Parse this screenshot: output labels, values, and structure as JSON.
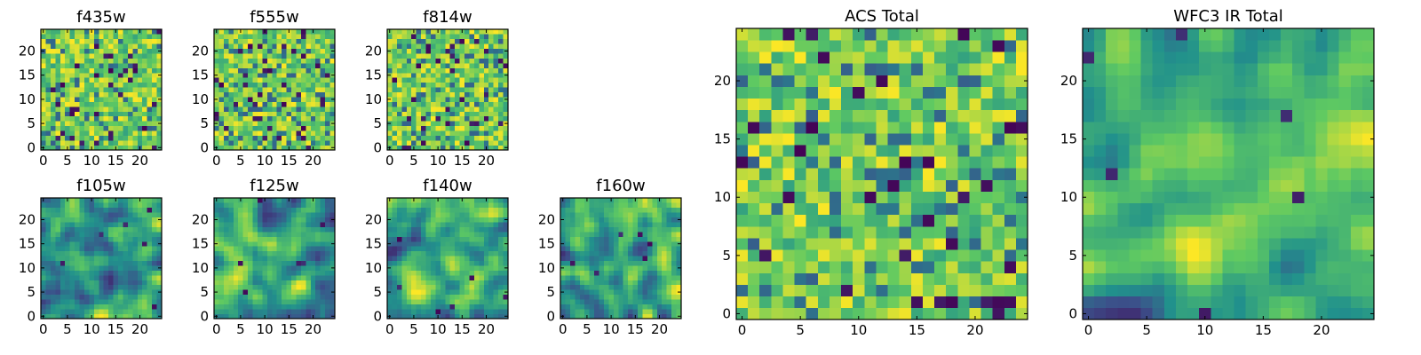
{
  "figure": {
    "colormap": [
      "#440154",
      "#3b528b",
      "#21918c",
      "#5ec962",
      "#fde725"
    ]
  },
  "chart_data": [
    {
      "type": "heatmap",
      "title": "f435w",
      "grid_size": 25,
      "xticks": [
        0,
        5,
        10,
        15,
        20
      ],
      "yticks": [
        0,
        5,
        10,
        15,
        20
      ],
      "texture": "noise",
      "seed": 11
    },
    {
      "type": "heatmap",
      "title": "f555w",
      "grid_size": 25,
      "xticks": [
        0,
        5,
        10,
        15,
        20
      ],
      "yticks": [
        0,
        5,
        10,
        15,
        20
      ],
      "texture": "noise",
      "seed": 23
    },
    {
      "type": "heatmap",
      "title": "f814w",
      "grid_size": 25,
      "xticks": [
        0,
        5,
        10,
        15,
        20
      ],
      "yticks": [
        0,
        5,
        10,
        15,
        20
      ],
      "texture": "noise",
      "seed": 37
    },
    {
      "type": "heatmap",
      "title": "f105w",
      "grid_size": 25,
      "xticks": [
        0,
        5,
        10,
        15,
        20
      ],
      "yticks": [
        0,
        5,
        10,
        15,
        20
      ],
      "texture": "smooth",
      "seed": 41
    },
    {
      "type": "heatmap",
      "title": "f125w",
      "grid_size": 25,
      "xticks": [
        0,
        5,
        10,
        15,
        20
      ],
      "yticks": [
        0,
        5,
        10,
        15,
        20
      ],
      "texture": "smooth",
      "seed": 53
    },
    {
      "type": "heatmap",
      "title": "f140w",
      "grid_size": 25,
      "xticks": [
        0,
        5,
        10,
        15,
        20
      ],
      "yticks": [
        0,
        5,
        10,
        15,
        20
      ],
      "texture": "smooth",
      "seed": 67
    },
    {
      "type": "heatmap",
      "title": "f160w",
      "grid_size": 25,
      "xticks": [
        0,
        5,
        10,
        15,
        20
      ],
      "yticks": [
        0,
        5,
        10,
        15,
        20
      ],
      "texture": "smooth",
      "seed": 79
    },
    {
      "type": "heatmap",
      "title": "ACS Total",
      "grid_size": 25,
      "xticks": [
        0,
        5,
        10,
        15,
        20
      ],
      "yticks": [
        0,
        5,
        10,
        15,
        20
      ],
      "texture": "noise",
      "seed": 83
    },
    {
      "type": "heatmap",
      "title": "WFC3 IR Total",
      "grid_size": 25,
      "xticks": [
        0,
        5,
        10,
        15,
        20
      ],
      "yticks": [
        0,
        5,
        10,
        15,
        20
      ],
      "texture": "smooth",
      "seed": 97
    }
  ]
}
